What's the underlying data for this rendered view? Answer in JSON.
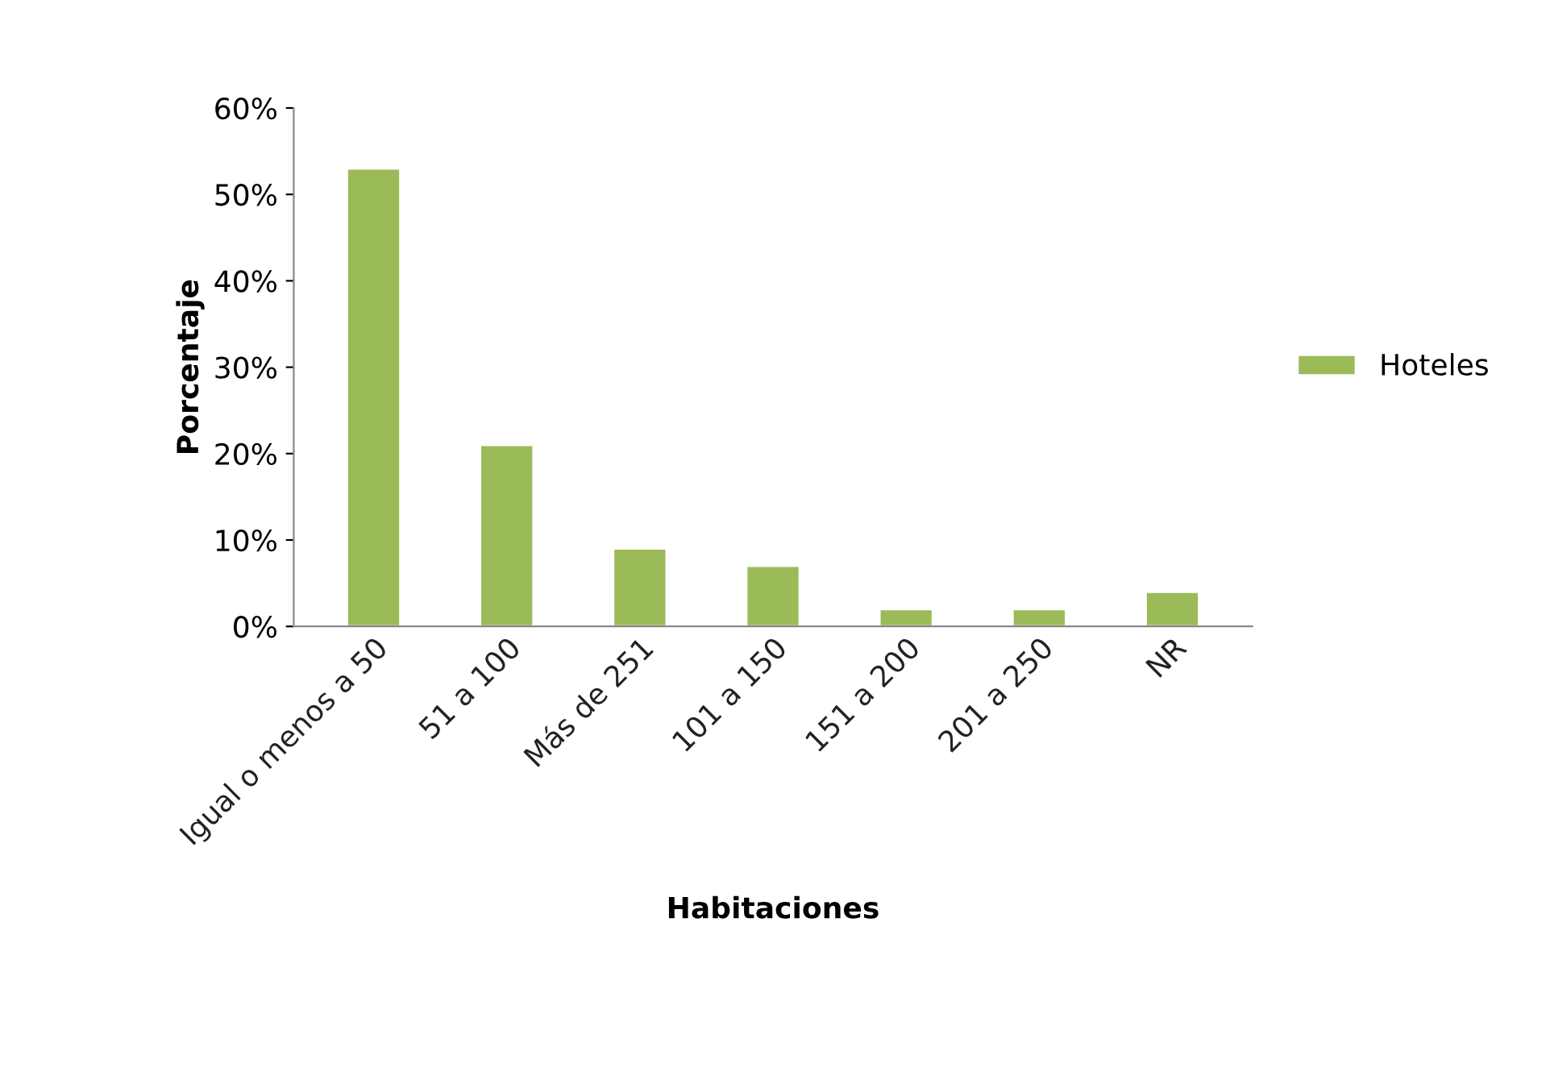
{
  "chart_data": {
    "type": "bar",
    "xlabel": "Habitaciones",
    "ylabel": "Porcentaje",
    "categories": [
      "Igual o menos a 50",
      "51 a 100",
      "Más de 251",
      "101 a 150",
      "151 a 200",
      "201 a 250",
      "NR"
    ],
    "series": [
      {
        "name": "Hoteles",
        "color": "#9bbb59",
        "values": [
          53,
          21,
          9,
          7,
          2,
          2,
          4
        ]
      }
    ],
    "ylim": [
      0,
      60
    ],
    "yticks": [
      {
        "value": 0,
        "label": "0%"
      },
      {
        "value": 10,
        "label": "10%"
      },
      {
        "value": 20,
        "label": "20%"
      },
      {
        "value": 30,
        "label": "30%"
      },
      {
        "value": 40,
        "label": "40%"
      },
      {
        "value": 50,
        "label": "50%"
      },
      {
        "value": 60,
        "label": "60%"
      }
    ],
    "grid": false,
    "legend": "right"
  }
}
